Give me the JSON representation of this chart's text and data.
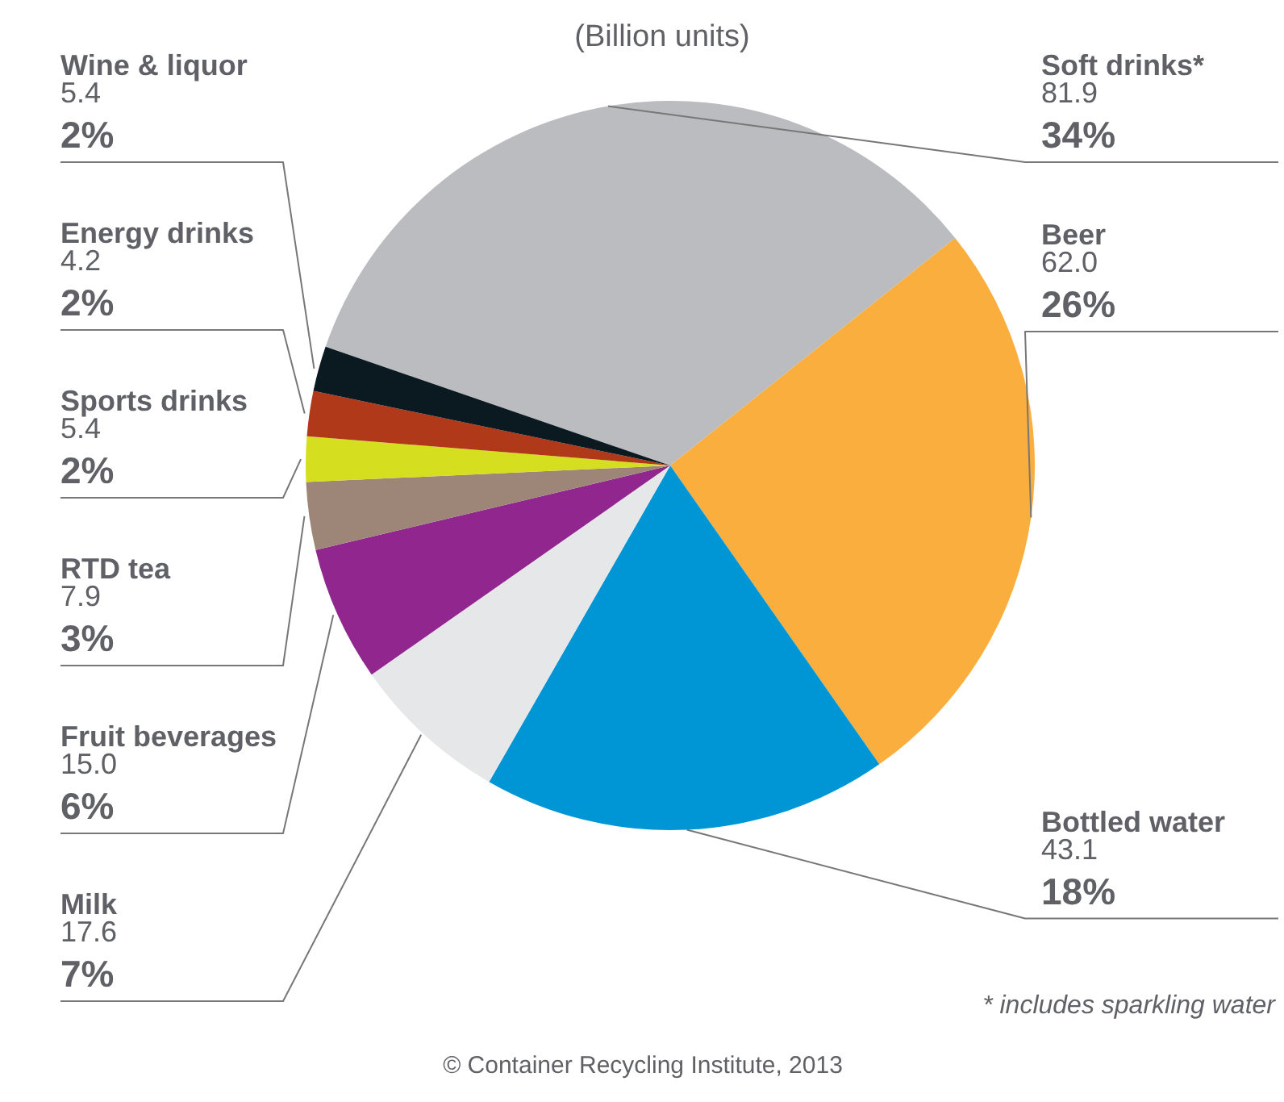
{
  "chart_data": {
    "type": "pie",
    "title": "(Billion units)",
    "categories": [
      "Soft drinks*",
      "Beer",
      "Bottled water",
      "Milk",
      "Fruit beverages",
      "RTD tea",
      "Sports drinks",
      "Energy drinks",
      "Wine & liquor"
    ],
    "values": [
      34,
      26,
      18,
      7,
      6,
      3,
      2,
      2,
      2
    ],
    "colors": [
      "#bbbcc0",
      "#f9ae3e",
      "#0096d6",
      "#e6e7e8",
      "#91268f",
      "#9d8677",
      "#d5df1f",
      "#b0391a",
      "#0b1a21"
    ],
    "value_labels": [
      "81.9\n34%",
      "62.0\n26%",
      "43.1\n18%",
      "17.6\n7%",
      "15.0\n6%",
      "7.9\n3%",
      "5.4\n2%",
      "4.2\n2%",
      "5.4\n2%"
    ],
    "annotations": [
      "* includes sparkling water",
      "© Container Recycling Institute, 2013"
    ]
  }
}
